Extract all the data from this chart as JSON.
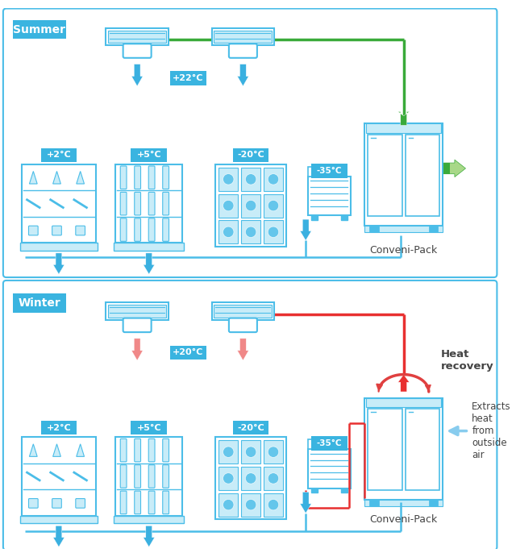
{
  "summer_label": "Summer",
  "winter_label": "Winter",
  "label_bg": "#3ab4e0",
  "label_fg": "#ffffff",
  "blue_stroke": "#4bbde8",
  "blue_fill": "#c8ecf8",
  "blue_arrow": "#3ab0e0",
  "green_line": "#3aaa3a",
  "green_arrow_fade": "#a8d888",
  "red_line": "#e83030",
  "red_arrow_light": "#f08888",
  "red_curve": "#e04040",
  "blue_outside_arrow": "#88ccee",
  "temp_22": "+22°C",
  "temp_20": "+20°C",
  "temp_2": "+2°C",
  "temp_5": "+5°C",
  "temp_m20": "-20°C",
  "temp_m35": "-35°C",
  "conveni_pack": "Conveni-Pack",
  "heat_recovery": "Heat\nrecovery",
  "extracts": "Extracts\nheat\nfrom\noutside\nair",
  "bg_color": "#ffffff",
  "text_dark": "#444444"
}
